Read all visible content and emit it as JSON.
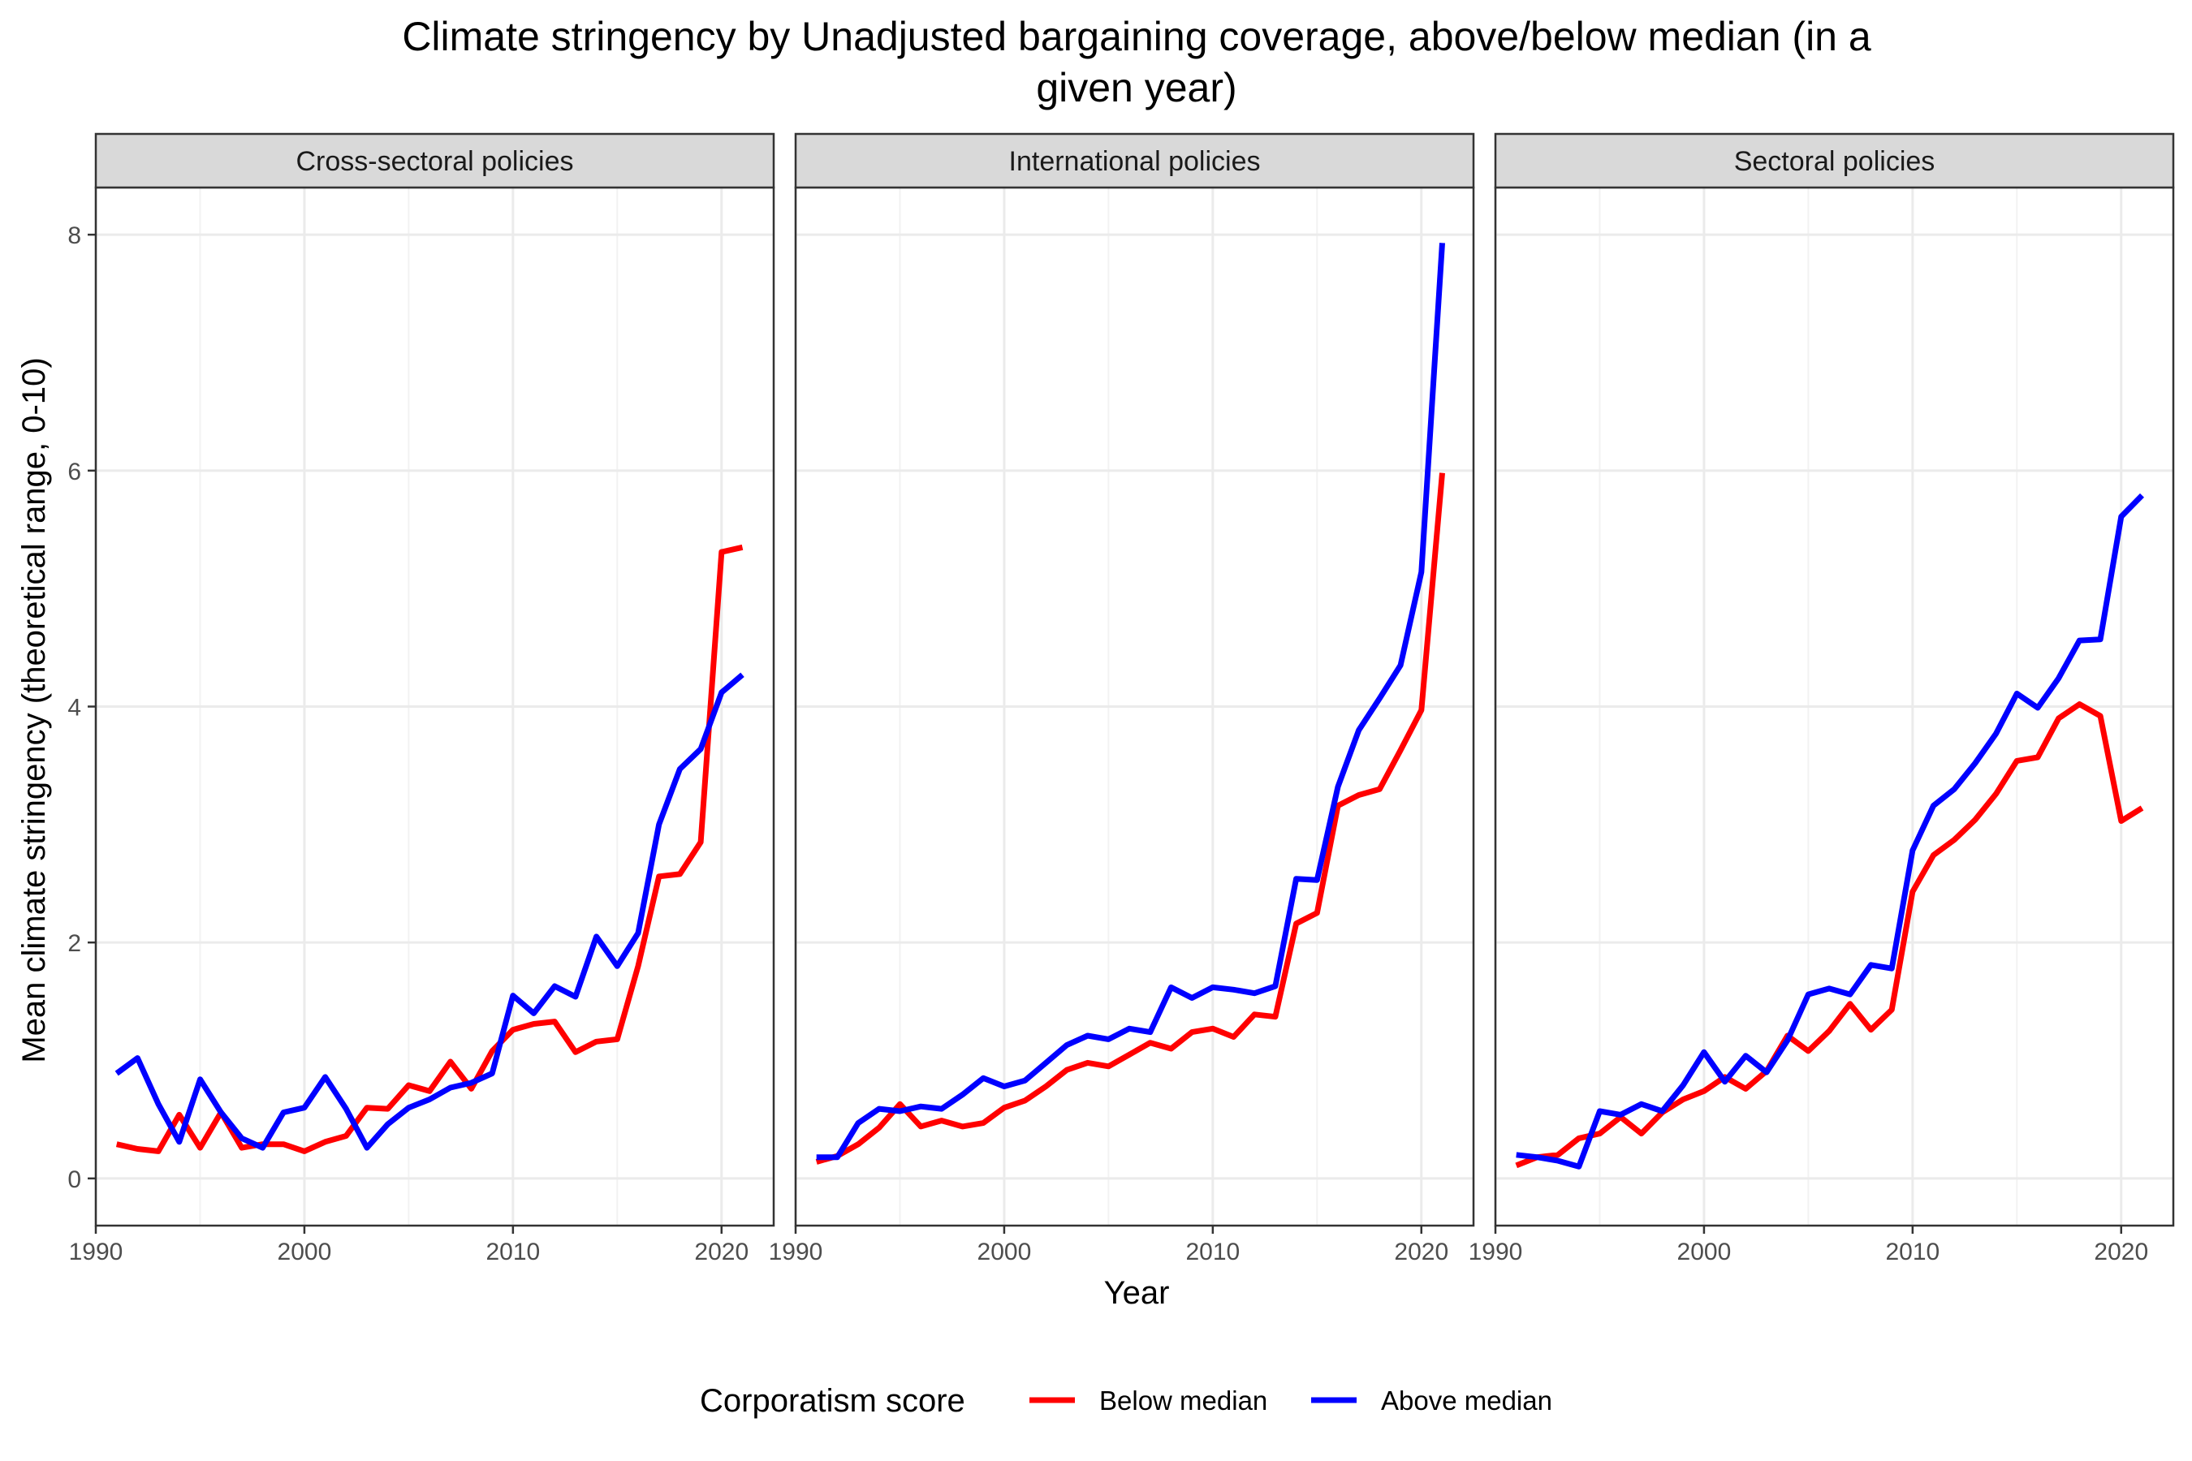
{
  "chart_data": {
    "type": "line",
    "title_line1": "Climate stringency by Unadjusted bargaining coverage, above/below median (in a",
    "title_line2": "given year)",
    "xlabel": "Year",
    "ylabel": "Mean climate stringency (theoretical range, 0-10)",
    "xlim": [
      1990,
      2022.5
    ],
    "ylim": [
      -0.4,
      8.4
    ],
    "x_ticks": [
      1990,
      2000,
      2010,
      2020
    ],
    "y_ticks": [
      0,
      2,
      4,
      6,
      8
    ],
    "x": [
      1991,
      1992,
      1993,
      1994,
      1995,
      1996,
      1997,
      1998,
      1999,
      2000,
      2001,
      2002,
      2003,
      2004,
      2005,
      2006,
      2007,
      2008,
      2009,
      2010,
      2011,
      2012,
      2013,
      2014,
      2015,
      2016,
      2017,
      2018,
      2019,
      2020,
      2021
    ],
    "grid": true,
    "legend": {
      "title": "Corporatism score",
      "position": "bottom",
      "entries": [
        {
          "label": "Below median",
          "color": "#ff0000"
        },
        {
          "label": "Above median",
          "color": "#0000ff"
        }
      ]
    },
    "panels": [
      {
        "title": "Cross-sectoral policies",
        "series": [
          {
            "name": "Below median",
            "color": "#ff0000",
            "values": [
              0.29,
              0.25,
              0.23,
              0.54,
              0.26,
              0.56,
              0.26,
              0.29,
              0.29,
              0.23,
              0.31,
              0.36,
              0.6,
              0.59,
              0.79,
              0.74,
              0.99,
              0.76,
              1.08,
              1.26,
              1.31,
              1.33,
              1.07,
              1.16,
              1.18,
              1.8,
              2.56,
              2.58,
              2.85,
              5.31,
              5.35
            ]
          },
          {
            "name": "Above median",
            "color": "#0000ff",
            "values": [
              0.89,
              1.02,
              0.63,
              0.31,
              0.84,
              0.56,
              0.34,
              0.26,
              0.56,
              0.6,
              0.86,
              0.59,
              0.26,
              0.46,
              0.6,
              0.67,
              0.77,
              0.81,
              0.89,
              1.55,
              1.4,
              1.63,
              1.54,
              2.05,
              1.8,
              2.08,
              3.0,
              3.47,
              3.64,
              4.12,
              4.27
            ]
          }
        ]
      },
      {
        "title": "International policies",
        "series": [
          {
            "name": "Below median",
            "color": "#ff0000",
            "values": [
              0.14,
              0.19,
              0.29,
              0.43,
              0.63,
              0.44,
              0.49,
              0.44,
              0.47,
              0.6,
              0.66,
              0.78,
              0.92,
              0.98,
              0.95,
              1.05,
              1.15,
              1.1,
              1.24,
              1.27,
              1.2,
              1.39,
              1.37,
              2.16,
              2.25,
              3.16,
              3.25,
              3.3,
              3.63,
              3.97,
              5.98
            ]
          },
          {
            "name": "Above median",
            "color": "#0000ff",
            "values": [
              0.18,
              0.18,
              0.47,
              0.59,
              0.57,
              0.61,
              0.59,
              0.71,
              0.85,
              0.78,
              0.83,
              0.98,
              1.13,
              1.21,
              1.18,
              1.27,
              1.24,
              1.62,
              1.53,
              1.62,
              1.6,
              1.57,
              1.63,
              2.54,
              2.53,
              3.32,
              3.8,
              4.07,
              4.35,
              5.14,
              7.93
            ]
          }
        ]
      },
      {
        "title": "Sectoral policies",
        "series": [
          {
            "name": "Below median",
            "color": "#ff0000",
            "values": [
              0.11,
              0.18,
              0.2,
              0.34,
              0.38,
              0.52,
              0.38,
              0.56,
              0.67,
              0.74,
              0.86,
              0.76,
              0.91,
              1.21,
              1.08,
              1.25,
              1.48,
              1.26,
              1.43,
              2.43,
              2.74,
              2.87,
              3.04,
              3.26,
              3.54,
              3.57,
              3.9,
              4.02,
              3.92,
              3.03,
              3.14
            ]
          },
          {
            "name": "Above median",
            "color": "#0000ff",
            "values": [
              0.2,
              0.18,
              0.15,
              0.1,
              0.57,
              0.54,
              0.63,
              0.57,
              0.79,
              1.07,
              0.82,
              1.04,
              0.9,
              1.17,
              1.56,
              1.61,
              1.56,
              1.81,
              1.78,
              2.78,
              3.16,
              3.3,
              3.52,
              3.77,
              4.11,
              3.99,
              4.24,
              4.56,
              4.57,
              5.61,
              5.79
            ]
          }
        ]
      }
    ]
  }
}
